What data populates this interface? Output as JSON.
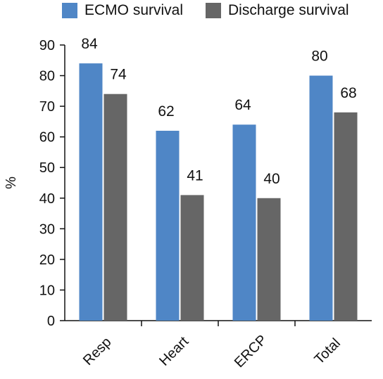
{
  "chart_data": {
    "type": "bar",
    "categories": [
      "Resp",
      "Heart",
      "ERCP",
      "Total"
    ],
    "series": [
      {
        "name": "ECMO survival",
        "values": [
          84,
          62,
          64,
          80
        ],
        "color": "#4f86c6"
      },
      {
        "name": "Discharge survival",
        "values": [
          74,
          41,
          40,
          68
        ],
        "color": "#666666"
      }
    ],
    "data_labels": [
      [
        "84",
        "62",
        "64",
        "80"
      ],
      [
        "74",
        "41",
        "40",
        "68"
      ]
    ],
    "ylabel": "%",
    "xlabel": "",
    "ylim": [
      0,
      90
    ],
    "yticks": [
      0,
      10,
      20,
      30,
      40,
      50,
      60,
      70,
      80,
      90
    ],
    "grid": false,
    "legend": "top"
  }
}
